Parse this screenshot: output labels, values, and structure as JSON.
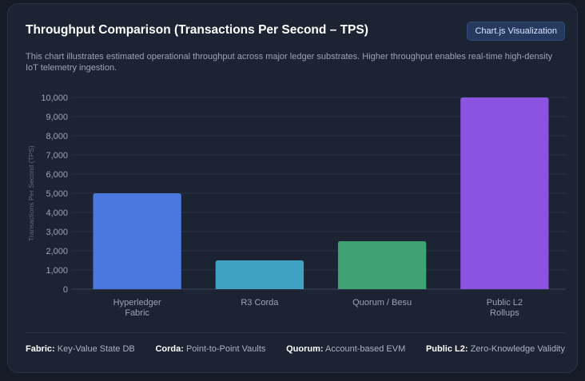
{
  "header": {
    "title": "Throughput Comparison (Transactions Per Second – TPS)",
    "badge": "Chart.js Visualization",
    "description": "This chart illustrates estimated operational throughput across major ledger substrates. Higher throughput enables real-time high-density IoT telemetry ingestion."
  },
  "chart_data": {
    "type": "bar",
    "categories": [
      [
        "Hyperledger",
        "Fabric"
      ],
      [
        "R3 Corda"
      ],
      [
        "Quorum / Besu"
      ],
      [
        "Public L2",
        "Rollups"
      ]
    ],
    "values": [
      5000,
      1500,
      2500,
      10000
    ],
    "colors": [
      "#4a78de",
      "#3fa2c2",
      "#3ea274",
      "#8c52e0"
    ],
    "ylabel": "Transactions Per Second (TPS)",
    "ylim": [
      0,
      10000
    ],
    "yticks": [
      "0",
      "1,000",
      "2,000",
      "3,000",
      "4,000",
      "5,000",
      "6,000",
      "7,000",
      "8,000",
      "9,000",
      "10,000"
    ],
    "grid": true
  },
  "footer": {
    "items": [
      {
        "key": "Fabric:",
        "value": "Key-Value State DB"
      },
      {
        "key": "Corda:",
        "value": "Point-to-Point Vaults"
      },
      {
        "key": "Quorum:",
        "value": "Account-based EVM"
      },
      {
        "key": "Public L2:",
        "value": "Zero-Knowledge Validity"
      }
    ]
  }
}
